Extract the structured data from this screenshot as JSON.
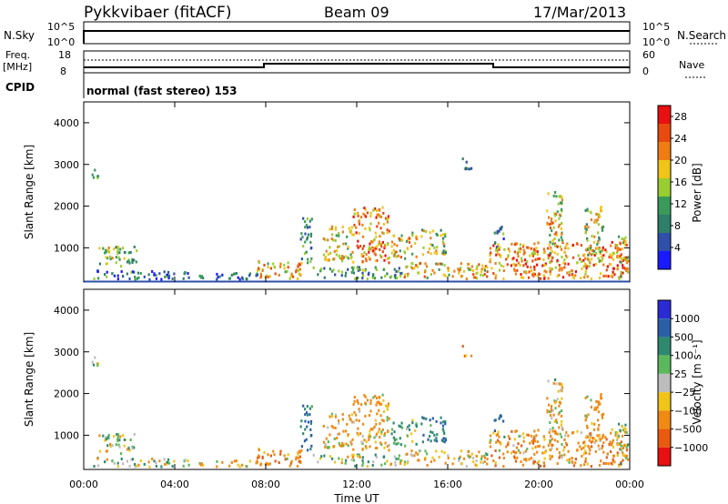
{
  "header": {
    "radar": "Pykkvibaer (fitACF)",
    "beam": "Beam 09",
    "date": "17/Mar/2013"
  },
  "aux": {
    "nsky_label": "N.Sky",
    "nsky_ticks": [
      "10^5",
      "10^0"
    ],
    "nsearch_label": "N.Search",
    "nsearch_ticks": [
      "10^5",
      "10^0"
    ],
    "freq_label_line1": "Freq.",
    "freq_label_line2": "[MHz]",
    "freq_ticks": [
      "18",
      "8"
    ],
    "nave_label": "Nave",
    "nave_ticks": [
      "60",
      "0"
    ],
    "cpid_label": "CPID",
    "cpid_text": "normal (fast stereo) 153"
  },
  "colors": {
    "power": [
      "#1a1aff",
      "#2f4faa",
      "#2f7f6a",
      "#3a9a5a",
      "#9acd32",
      "#f0c419",
      "#f07d14",
      "#e84a10",
      "#e81010"
    ],
    "velocity": [
      "#2b2bd6",
      "#2a5fa8",
      "#2e8a6f",
      "#5cb85c",
      "#bdbdbd",
      "#f0c419",
      "#f08a14",
      "#e85a10",
      "#e81010"
    ]
  },
  "chart_data": [
    {
      "type": "heatmap",
      "name": "power",
      "ylabel": "Slant Range [km]",
      "xlabel": "Time UT",
      "x_ticks": [
        "00:00",
        "04:00",
        "08:00",
        "12:00",
        "16:00",
        "20:00",
        "00:00"
      ],
      "x_range_hours": [
        0,
        24
      ],
      "y_ticks": [
        "1000",
        "2000",
        "3000",
        "4000"
      ],
      "y_range_km": [
        180,
        4500
      ],
      "colorbar_label": "Power [dB]",
      "colorbar_ticks": [
        "4",
        "8",
        "12",
        "16",
        "20",
        "24",
        "28"
      ],
      "colorbar_range": [
        0,
        30
      ]
    },
    {
      "type": "heatmap",
      "name": "velocity",
      "ylabel": "Slant Range [km]",
      "xlabel": "Time UT",
      "x_ticks": [
        "00:00",
        "04:00",
        "08:00",
        "12:00",
        "16:00",
        "20:00",
        "00:00"
      ],
      "x_range_hours": [
        0,
        24
      ],
      "y_ticks": [
        "1000",
        "2000",
        "3000",
        "4000"
      ],
      "y_range_km": [
        180,
        4500
      ],
      "colorbar_label": "Velocity [m s⁻¹]",
      "colorbar_ticks": [
        "1000",
        "500",
        "100",
        "25",
        "−25",
        "−100",
        "−500",
        "−1000"
      ],
      "colorbar_range": [
        -1000,
        1000
      ]
    }
  ],
  "scatter_regions": [
    {
      "t0": 0.3,
      "t1": 0.7,
      "r0": 2600,
      "r1": 2850,
      "p": 8,
      "v": 25
    },
    {
      "t0": 0.5,
      "t1": 2.3,
      "r0": 520,
      "r1": 1000,
      "p": 14,
      "v": 25
    },
    {
      "t0": 0.4,
      "t1": 4.5,
      "r0": 200,
      "r1": 420,
      "p": 7,
      "v": 25
    },
    {
      "t0": 4.5,
      "t1": 7.6,
      "r0": 200,
      "r1": 360,
      "p": 6,
      "v": -100
    },
    {
      "t0": 7.6,
      "t1": 9.6,
      "r0": 220,
      "r1": 650,
      "p": 20,
      "v": -300
    },
    {
      "t0": 9.5,
      "t1": 10.0,
      "r0": 600,
      "r1": 1700,
      "p": 10,
      "v": 500
    },
    {
      "t0": 10.5,
      "t1": 11.8,
      "r0": 650,
      "r1": 1500,
      "p": 16,
      "v": -100
    },
    {
      "t0": 11.8,
      "t1": 13.4,
      "r0": 600,
      "r1": 1950,
      "p": 22,
      "v": -200
    },
    {
      "t0": 13.5,
      "t1": 14.6,
      "r0": 700,
      "r1": 1350,
      "p": 18,
      "v": 100
    },
    {
      "t0": 14.8,
      "t1": 15.9,
      "r0": 800,
      "r1": 1400,
      "p": 14,
      "v": 500
    },
    {
      "t0": 10.0,
      "t1": 14.0,
      "r0": 220,
      "r1": 500,
      "p": 10,
      "v": 25
    },
    {
      "t0": 14.0,
      "t1": 17.8,
      "r0": 220,
      "r1": 600,
      "p": 20,
      "v": -100
    },
    {
      "t0": 16.6,
      "t1": 17.0,
      "r0": 2800,
      "r1": 3150,
      "p": 10,
      "v": -300
    },
    {
      "t0": 17.8,
      "t1": 23.9,
      "r0": 220,
      "r1": 1100,
      "p": 22,
      "v": -300
    },
    {
      "t0": 18.0,
      "t1": 18.5,
      "r0": 900,
      "r1": 1500,
      "p": 10,
      "v": 500
    },
    {
      "t0": 20.3,
      "t1": 21.0,
      "r0": 700,
      "r1": 2300,
      "p": 18,
      "v": -100
    },
    {
      "t0": 22.0,
      "t1": 22.8,
      "r0": 600,
      "r1": 2000,
      "p": 16,
      "v": -200
    },
    {
      "t0": 23.4,
      "t1": 23.9,
      "r0": 200,
      "r1": 1250,
      "p": 18,
      "v": 25
    }
  ]
}
